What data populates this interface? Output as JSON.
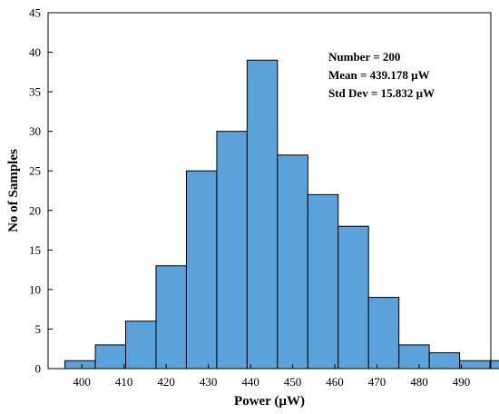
{
  "chart_data": {
    "type": "bar",
    "title": "",
    "xlabel": "Power (µW)",
    "ylabel": "No of Samples",
    "xlim": [
      392,
      497
    ],
    "ylim": [
      0,
      45
    ],
    "x_ticks": [
      400,
      410,
      420,
      430,
      440,
      450,
      460,
      470,
      480,
      490
    ],
    "y_ticks": [
      0,
      5,
      10,
      15,
      20,
      25,
      30,
      35,
      40,
      45
    ],
    "bin_width": 7.2,
    "bin_start": 396,
    "values": [
      1,
      3,
      6,
      13,
      25,
      30,
      39,
      27,
      22,
      18,
      9,
      3,
      2,
      1,
      1
    ],
    "bar_color": "#5aa2d9",
    "bar_edge_color": "#000000",
    "annotations": [
      "Number = 200",
      "Mean = 439.178 µW",
      "Std Dev = 15.832 µW"
    ]
  }
}
